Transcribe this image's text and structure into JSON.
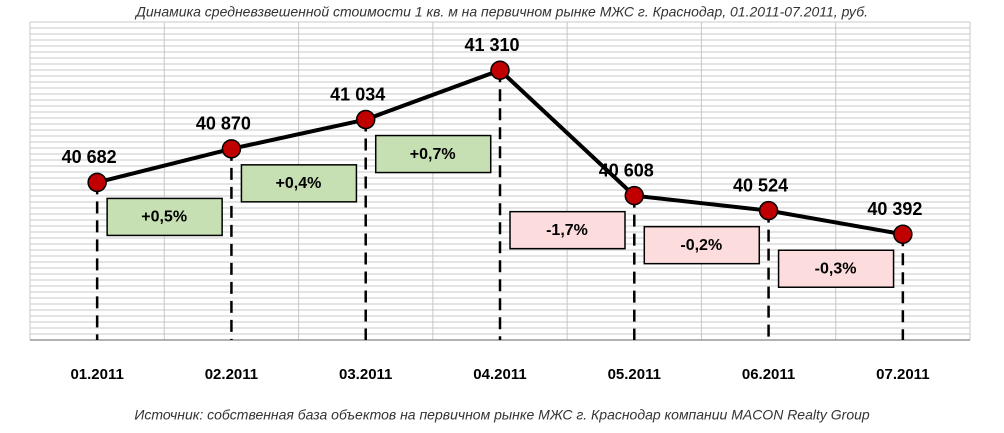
{
  "chart_data": {
    "type": "line",
    "title": "Динамика средневзвешенной стоимости 1 кв. м на первичном рынке МЖС г. Краснодар, 01.2011-07.2011, руб.",
    "source": "Источник: собственная база объектов на первичном рынке МЖС г. Краснодар компании MACON Realty Group",
    "categories": [
      "01.2011",
      "02.2011",
      "03.2011",
      "04.2011",
      "05.2011",
      "06.2011",
      "07.2011"
    ],
    "series": [
      {
        "color": "#000000",
        "marker_color": "#c00000",
        "values": [
          40682,
          40870,
          41034,
          41310,
          40608,
          40524,
          40392
        ],
        "value_labels": [
          "40 682",
          "40 870",
          "41 034",
          "41 310",
          "40 608",
          "40 524",
          "40 392"
        ]
      }
    ],
    "changes": {
      "values": [
        0.5,
        0.4,
        0.7,
        -1.7,
        -0.2,
        -0.3
      ],
      "value_labels": [
        "+0,5%",
        "+0,4%",
        "+0,7%",
        "-1,7%",
        "-0,2%",
        "-0,3%"
      ],
      "up_color": "#c6e0b4",
      "down_color": "#fcdcdc"
    },
    "ylim": [
      39800,
      41580
    ],
    "grid": true
  }
}
